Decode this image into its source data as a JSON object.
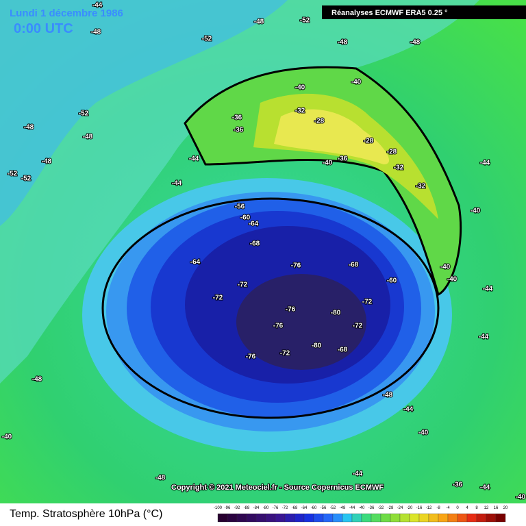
{
  "header": {
    "date": "Lundi 1 décembre 1986",
    "time": "0:00 UTC",
    "source": "Réanalyses ECMWF ERA5 0.25 °"
  },
  "footer": {
    "copyright": "Copyright © 2021 Meteociel.fr - Source Copernicus ECMWF",
    "title": "Temp. Stratosphère 10hPa (°C)"
  },
  "legend": {
    "labels": [
      -100,
      -96,
      -92,
      -88,
      -84,
      -80,
      -76,
      -72,
      -68,
      -64,
      -60,
      -56,
      -52,
      -48,
      -44,
      -40,
      -36,
      -32,
      -28,
      -24,
      -20,
      -16,
      -12,
      -8,
      -4,
      0,
      4,
      8,
      12,
      16,
      20
    ]
  },
  "contour_labels": [
    -48,
    -52,
    -48,
    -52,
    -48,
    -48,
    -44,
    -52,
    -48,
    -48,
    -52,
    -52,
    -48,
    -44,
    -44,
    -40,
    -40,
    -36,
    -36,
    -32,
    -28,
    -28,
    -28,
    -32,
    -32,
    -40,
    -36,
    -56,
    -60,
    -64,
    -68,
    -64,
    -72,
    -72,
    -76,
    -68,
    -60,
    -72,
    -72,
    -76,
    -80,
    -80,
    -76,
    -68,
    -72,
    -76,
    -48,
    -44,
    -40,
    -48,
    -44,
    -40,
    -44,
    -40,
    -40,
    -44,
    -44,
    -40,
    -48,
    -36,
    -44,
    -40
  ]
}
